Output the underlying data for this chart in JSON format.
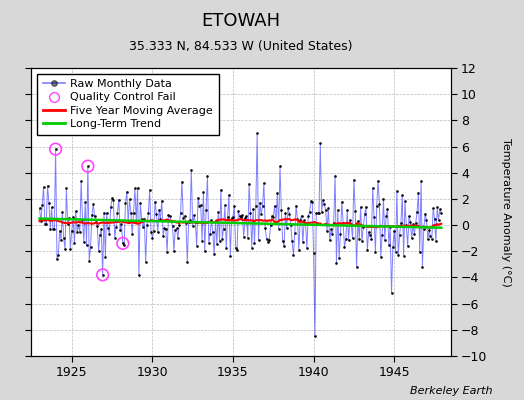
{
  "title": "ETOWAH",
  "subtitle": "35.333 N, 84.533 W (United States)",
  "ylabel": "Temperature Anomaly (°C)",
  "credit": "Berkeley Earth",
  "xlim": [
    1922.5,
    1948.5
  ],
  "ylim": [
    -10,
    12
  ],
  "yticks": [
    -10,
    -8,
    -6,
    -4,
    -2,
    0,
    2,
    4,
    6,
    8,
    10,
    12
  ],
  "xticks": [
    1925,
    1930,
    1935,
    1940,
    1945
  ],
  "fig_bg": "#d8d8d8",
  "plot_bg": "#ffffff",
  "grid_color": "#bbbbbb",
  "blue_line_color": "#0000ff",
  "blue_line_alpha": 0.5,
  "dot_color": "#000000",
  "red_line_color": "#ff0000",
  "green_line_color": "#00cc00",
  "qc_color": "#ff44ff",
  "title_fontsize": 13,
  "subtitle_fontsize": 9,
  "tick_fontsize": 9,
  "ylabel_fontsize": 8,
  "legend_fontsize": 8,
  "start_year": 1923,
  "end_year": 1947
}
